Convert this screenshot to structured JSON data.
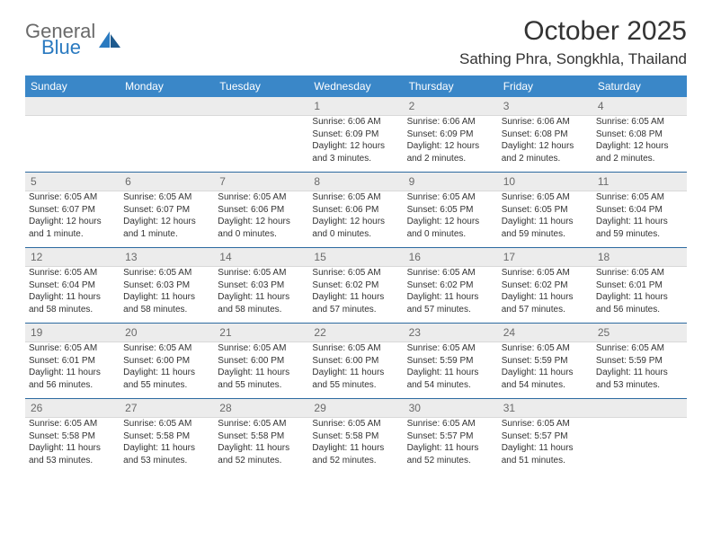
{
  "brand": {
    "part1": "General",
    "part2": "Blue"
  },
  "title": "October 2025",
  "location": "Sathing Phra, Songkhla, Thailand",
  "colors": {
    "header_bg": "#3a87c8",
    "header_text": "#ffffff",
    "daynum_bg": "#ececec",
    "rule": "#2d6aa0",
    "text": "#333333",
    "logo_gray": "#6a6a6a",
    "logo_blue": "#2a7ac0"
  },
  "day_labels": [
    "Sunday",
    "Monday",
    "Tuesday",
    "Wednesday",
    "Thursday",
    "Friday",
    "Saturday"
  ],
  "weeks": [
    [
      null,
      null,
      null,
      {
        "n": "1",
        "sr": "Sunrise: 6:06 AM",
        "ss": "Sunset: 6:09 PM",
        "d1": "Daylight: 12 hours",
        "d2": "and 3 minutes."
      },
      {
        "n": "2",
        "sr": "Sunrise: 6:06 AM",
        "ss": "Sunset: 6:09 PM",
        "d1": "Daylight: 12 hours",
        "d2": "and 2 minutes."
      },
      {
        "n": "3",
        "sr": "Sunrise: 6:06 AM",
        "ss": "Sunset: 6:08 PM",
        "d1": "Daylight: 12 hours",
        "d2": "and 2 minutes."
      },
      {
        "n": "4",
        "sr": "Sunrise: 6:05 AM",
        "ss": "Sunset: 6:08 PM",
        "d1": "Daylight: 12 hours",
        "d2": "and 2 minutes."
      }
    ],
    [
      {
        "n": "5",
        "sr": "Sunrise: 6:05 AM",
        "ss": "Sunset: 6:07 PM",
        "d1": "Daylight: 12 hours",
        "d2": "and 1 minute."
      },
      {
        "n": "6",
        "sr": "Sunrise: 6:05 AM",
        "ss": "Sunset: 6:07 PM",
        "d1": "Daylight: 12 hours",
        "d2": "and 1 minute."
      },
      {
        "n": "7",
        "sr": "Sunrise: 6:05 AM",
        "ss": "Sunset: 6:06 PM",
        "d1": "Daylight: 12 hours",
        "d2": "and 0 minutes."
      },
      {
        "n": "8",
        "sr": "Sunrise: 6:05 AM",
        "ss": "Sunset: 6:06 PM",
        "d1": "Daylight: 12 hours",
        "d2": "and 0 minutes."
      },
      {
        "n": "9",
        "sr": "Sunrise: 6:05 AM",
        "ss": "Sunset: 6:05 PM",
        "d1": "Daylight: 12 hours",
        "d2": "and 0 minutes."
      },
      {
        "n": "10",
        "sr": "Sunrise: 6:05 AM",
        "ss": "Sunset: 6:05 PM",
        "d1": "Daylight: 11 hours",
        "d2": "and 59 minutes."
      },
      {
        "n": "11",
        "sr": "Sunrise: 6:05 AM",
        "ss": "Sunset: 6:04 PM",
        "d1": "Daylight: 11 hours",
        "d2": "and 59 minutes."
      }
    ],
    [
      {
        "n": "12",
        "sr": "Sunrise: 6:05 AM",
        "ss": "Sunset: 6:04 PM",
        "d1": "Daylight: 11 hours",
        "d2": "and 58 minutes."
      },
      {
        "n": "13",
        "sr": "Sunrise: 6:05 AM",
        "ss": "Sunset: 6:03 PM",
        "d1": "Daylight: 11 hours",
        "d2": "and 58 minutes."
      },
      {
        "n": "14",
        "sr": "Sunrise: 6:05 AM",
        "ss": "Sunset: 6:03 PM",
        "d1": "Daylight: 11 hours",
        "d2": "and 58 minutes."
      },
      {
        "n": "15",
        "sr": "Sunrise: 6:05 AM",
        "ss": "Sunset: 6:02 PM",
        "d1": "Daylight: 11 hours",
        "d2": "and 57 minutes."
      },
      {
        "n": "16",
        "sr": "Sunrise: 6:05 AM",
        "ss": "Sunset: 6:02 PM",
        "d1": "Daylight: 11 hours",
        "d2": "and 57 minutes."
      },
      {
        "n": "17",
        "sr": "Sunrise: 6:05 AM",
        "ss": "Sunset: 6:02 PM",
        "d1": "Daylight: 11 hours",
        "d2": "and 57 minutes."
      },
      {
        "n": "18",
        "sr": "Sunrise: 6:05 AM",
        "ss": "Sunset: 6:01 PM",
        "d1": "Daylight: 11 hours",
        "d2": "and 56 minutes."
      }
    ],
    [
      {
        "n": "19",
        "sr": "Sunrise: 6:05 AM",
        "ss": "Sunset: 6:01 PM",
        "d1": "Daylight: 11 hours",
        "d2": "and 56 minutes."
      },
      {
        "n": "20",
        "sr": "Sunrise: 6:05 AM",
        "ss": "Sunset: 6:00 PM",
        "d1": "Daylight: 11 hours",
        "d2": "and 55 minutes."
      },
      {
        "n": "21",
        "sr": "Sunrise: 6:05 AM",
        "ss": "Sunset: 6:00 PM",
        "d1": "Daylight: 11 hours",
        "d2": "and 55 minutes."
      },
      {
        "n": "22",
        "sr": "Sunrise: 6:05 AM",
        "ss": "Sunset: 6:00 PM",
        "d1": "Daylight: 11 hours",
        "d2": "and 55 minutes."
      },
      {
        "n": "23",
        "sr": "Sunrise: 6:05 AM",
        "ss": "Sunset: 5:59 PM",
        "d1": "Daylight: 11 hours",
        "d2": "and 54 minutes."
      },
      {
        "n": "24",
        "sr": "Sunrise: 6:05 AM",
        "ss": "Sunset: 5:59 PM",
        "d1": "Daylight: 11 hours",
        "d2": "and 54 minutes."
      },
      {
        "n": "25",
        "sr": "Sunrise: 6:05 AM",
        "ss": "Sunset: 5:59 PM",
        "d1": "Daylight: 11 hours",
        "d2": "and 53 minutes."
      }
    ],
    [
      {
        "n": "26",
        "sr": "Sunrise: 6:05 AM",
        "ss": "Sunset: 5:58 PM",
        "d1": "Daylight: 11 hours",
        "d2": "and 53 minutes."
      },
      {
        "n": "27",
        "sr": "Sunrise: 6:05 AM",
        "ss": "Sunset: 5:58 PM",
        "d1": "Daylight: 11 hours",
        "d2": "and 53 minutes."
      },
      {
        "n": "28",
        "sr": "Sunrise: 6:05 AM",
        "ss": "Sunset: 5:58 PM",
        "d1": "Daylight: 11 hours",
        "d2": "and 52 minutes."
      },
      {
        "n": "29",
        "sr": "Sunrise: 6:05 AM",
        "ss": "Sunset: 5:58 PM",
        "d1": "Daylight: 11 hours",
        "d2": "and 52 minutes."
      },
      {
        "n": "30",
        "sr": "Sunrise: 6:05 AM",
        "ss": "Sunset: 5:57 PM",
        "d1": "Daylight: 11 hours",
        "d2": "and 52 minutes."
      },
      {
        "n": "31",
        "sr": "Sunrise: 6:05 AM",
        "ss": "Sunset: 5:57 PM",
        "d1": "Daylight: 11 hours",
        "d2": "and 51 minutes."
      },
      null
    ]
  ]
}
